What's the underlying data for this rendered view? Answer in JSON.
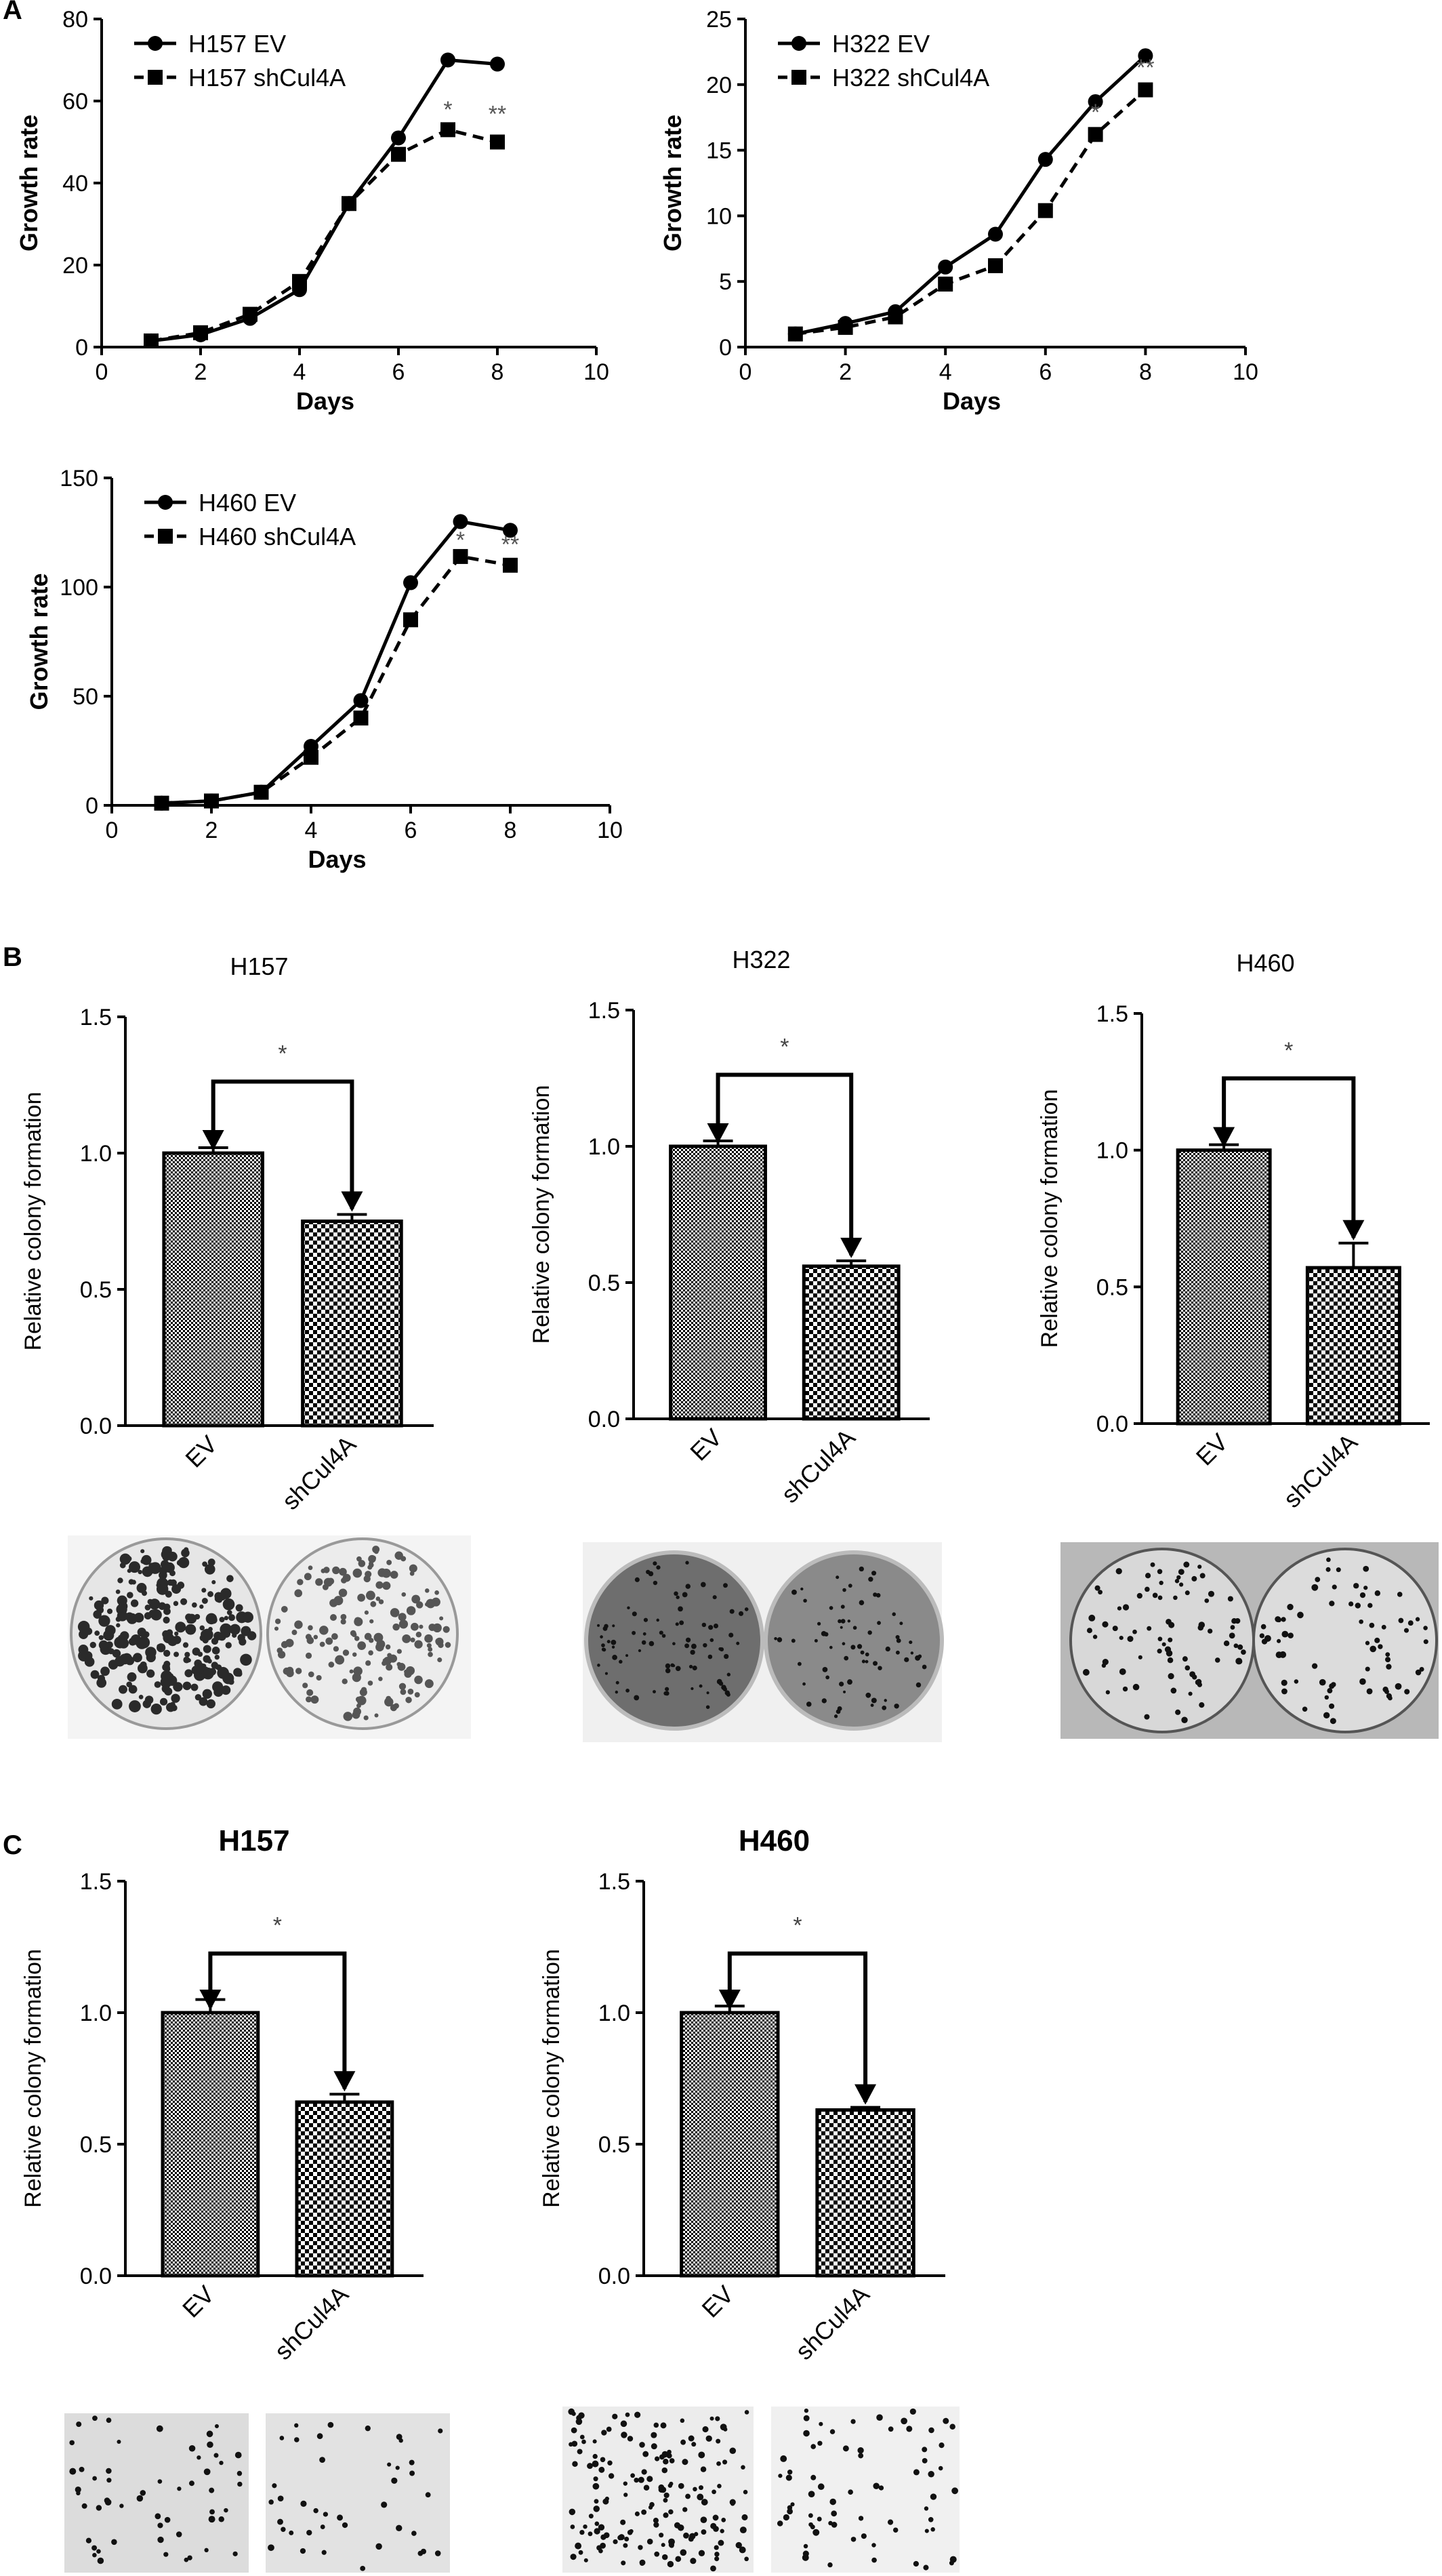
{
  "panel_labels": [
    "A",
    "B",
    "C"
  ],
  "colors": {
    "ink": "#000000",
    "background": "#ffffff",
    "photo_light": "#f2f2f2",
    "photo_dark": "#1a1a1a"
  },
  "chart_data": [
    {
      "id": "A-H157",
      "type": "line",
      "panel": "A",
      "title": "",
      "xlabel": "Days",
      "ylabel": "Growth rate",
      "xlim": [
        0,
        10
      ],
      "ylim": [
        0,
        80
      ],
      "xticks": [
        0,
        2,
        4,
        6,
        8,
        10
      ],
      "yticks": [
        0,
        20,
        40,
        60,
        80
      ],
      "legend": "top-left",
      "series": [
        {
          "name": "H157 EV",
          "style": "solid",
          "marker": "circle",
          "x": [
            1,
            2,
            3,
            4,
            5,
            6,
            7,
            8
          ],
          "y": [
            1.5,
            3,
            7,
            14,
            35,
            51,
            70,
            69
          ]
        },
        {
          "name": "H157 shCul4A",
          "style": "dashed",
          "marker": "square",
          "x": [
            1,
            2,
            3,
            4,
            5,
            6,
            7,
            8
          ],
          "y": [
            1.5,
            3.5,
            8,
            16,
            35,
            47,
            53,
            50
          ]
        }
      ],
      "annotations": [
        {
          "text": "*",
          "x": 7,
          "y": 56
        },
        {
          "text": "**",
          "x": 8,
          "y": 55
        }
      ]
    },
    {
      "id": "A-H322",
      "type": "line",
      "panel": "A",
      "title": "",
      "xlabel": "Days",
      "ylabel": "Growth rate",
      "xlim": [
        0,
        10
      ],
      "ylim": [
        0,
        25
      ],
      "xticks": [
        0,
        2,
        4,
        6,
        8,
        10
      ],
      "yticks": [
        0,
        5,
        10,
        15,
        20,
        25
      ],
      "legend": "top-left",
      "series": [
        {
          "name": "H322 EV",
          "style": "solid",
          "marker": "circle",
          "x": [
            1,
            2,
            3,
            4,
            5,
            6,
            7,
            8
          ],
          "y": [
            1,
            1.8,
            2.7,
            6.1,
            8.6,
            14.3,
            18.7,
            22.2
          ]
        },
        {
          "name": "H322 shCul4A",
          "style": "dashed",
          "marker": "square",
          "x": [
            1,
            2,
            3,
            4,
            5,
            6,
            7,
            8
          ],
          "y": [
            1,
            1.5,
            2.3,
            4.8,
            6.2,
            10.4,
            16.2,
            19.6
          ]
        }
      ],
      "annotations": [
        {
          "text": "*",
          "x": 7,
          "y": 17.3
        },
        {
          "text": "**",
          "x": 8,
          "y": 20.7
        }
      ]
    },
    {
      "id": "A-H460",
      "type": "line",
      "panel": "A",
      "title": "",
      "xlabel": "Days",
      "ylabel": "Growth rate",
      "xlim": [
        0,
        10
      ],
      "ylim": [
        0,
        150
      ],
      "xticks": [
        0,
        2,
        4,
        6,
        8,
        10
      ],
      "yticks": [
        0,
        50,
        100,
        150
      ],
      "legend": "top-left",
      "series": [
        {
          "name": "H460 EV",
          "style": "solid",
          "marker": "circle",
          "x": [
            1,
            2,
            3,
            4,
            5,
            6,
            7,
            8
          ],
          "y": [
            1,
            2,
            6,
            27,
            48,
            102,
            130,
            126
          ]
        },
        {
          "name": "H460 shCul4A",
          "style": "dashed",
          "marker": "square",
          "x": [
            1,
            2,
            3,
            4,
            5,
            6,
            7,
            8
          ],
          "y": [
            1,
            2,
            6,
            22,
            40,
            85,
            114,
            110
          ]
        }
      ],
      "annotations": [
        {
          "text": "*",
          "x": 7,
          "y": 118
        },
        {
          "text": "**",
          "x": 8,
          "y": 116
        }
      ]
    },
    {
      "id": "B-H157",
      "type": "bar",
      "panel": "B",
      "title": "H157",
      "xlabel": "",
      "ylabel": "Relative colony formation",
      "ylim": [
        0,
        1.5
      ],
      "yticks": [
        "0.0",
        "0.5",
        "1.0",
        "1.5"
      ],
      "categories": [
        "EV",
        "shCul4A"
      ],
      "values": [
        1.0,
        0.75
      ],
      "errors": [
        0.02,
        0.025
      ],
      "significance": "*"
    },
    {
      "id": "B-H322",
      "type": "bar",
      "panel": "B",
      "title": "H322",
      "xlabel": "",
      "ylabel": "Relative colony formation",
      "ylim": [
        0,
        1.5
      ],
      "yticks": [
        "0.0",
        "0.5",
        "1.0",
        "1.5"
      ],
      "categories": [
        "EV",
        "shCul4A"
      ],
      "values": [
        1.0,
        0.56
      ],
      "errors": [
        0.02,
        0.02
      ],
      "significance": "*"
    },
    {
      "id": "B-H460",
      "type": "bar",
      "panel": "B",
      "title": "H460",
      "xlabel": "",
      "ylabel": "Relative colony formation",
      "ylim": [
        0,
        1.5
      ],
      "yticks": [
        "0.0",
        "0.5",
        "1.0",
        "1.5"
      ],
      "categories": [
        "EV",
        "shCul4A"
      ],
      "values": [
        1.0,
        0.57
      ],
      "errors": [
        0.02,
        0.09
      ],
      "significance": "*"
    },
    {
      "id": "C-H157",
      "type": "bar",
      "panel": "C",
      "title": "H157",
      "xlabel": "",
      "ylabel": "Relative colony formation",
      "ylim": [
        0,
        1.5
      ],
      "yticks": [
        "0.0",
        "0.5",
        "1.0",
        "1.5"
      ],
      "categories": [
        "EV",
        "shCul4A"
      ],
      "values": [
        1.0,
        0.66
      ],
      "errors": [
        0.05,
        0.03
      ],
      "significance": "*"
    },
    {
      "id": "C-H460",
      "type": "bar",
      "panel": "C",
      "title": "H460",
      "xlabel": "",
      "ylabel": "Relative colony formation",
      "ylim": [
        0,
        1.5
      ],
      "yticks": [
        "0.0",
        "0.5",
        "1.0",
        "1.5"
      ],
      "categories": [
        "EV",
        "shCul4A"
      ],
      "values": [
        1.0,
        0.63
      ],
      "errors": [
        0.025,
        0.01
      ],
      "significance": "*"
    }
  ]
}
